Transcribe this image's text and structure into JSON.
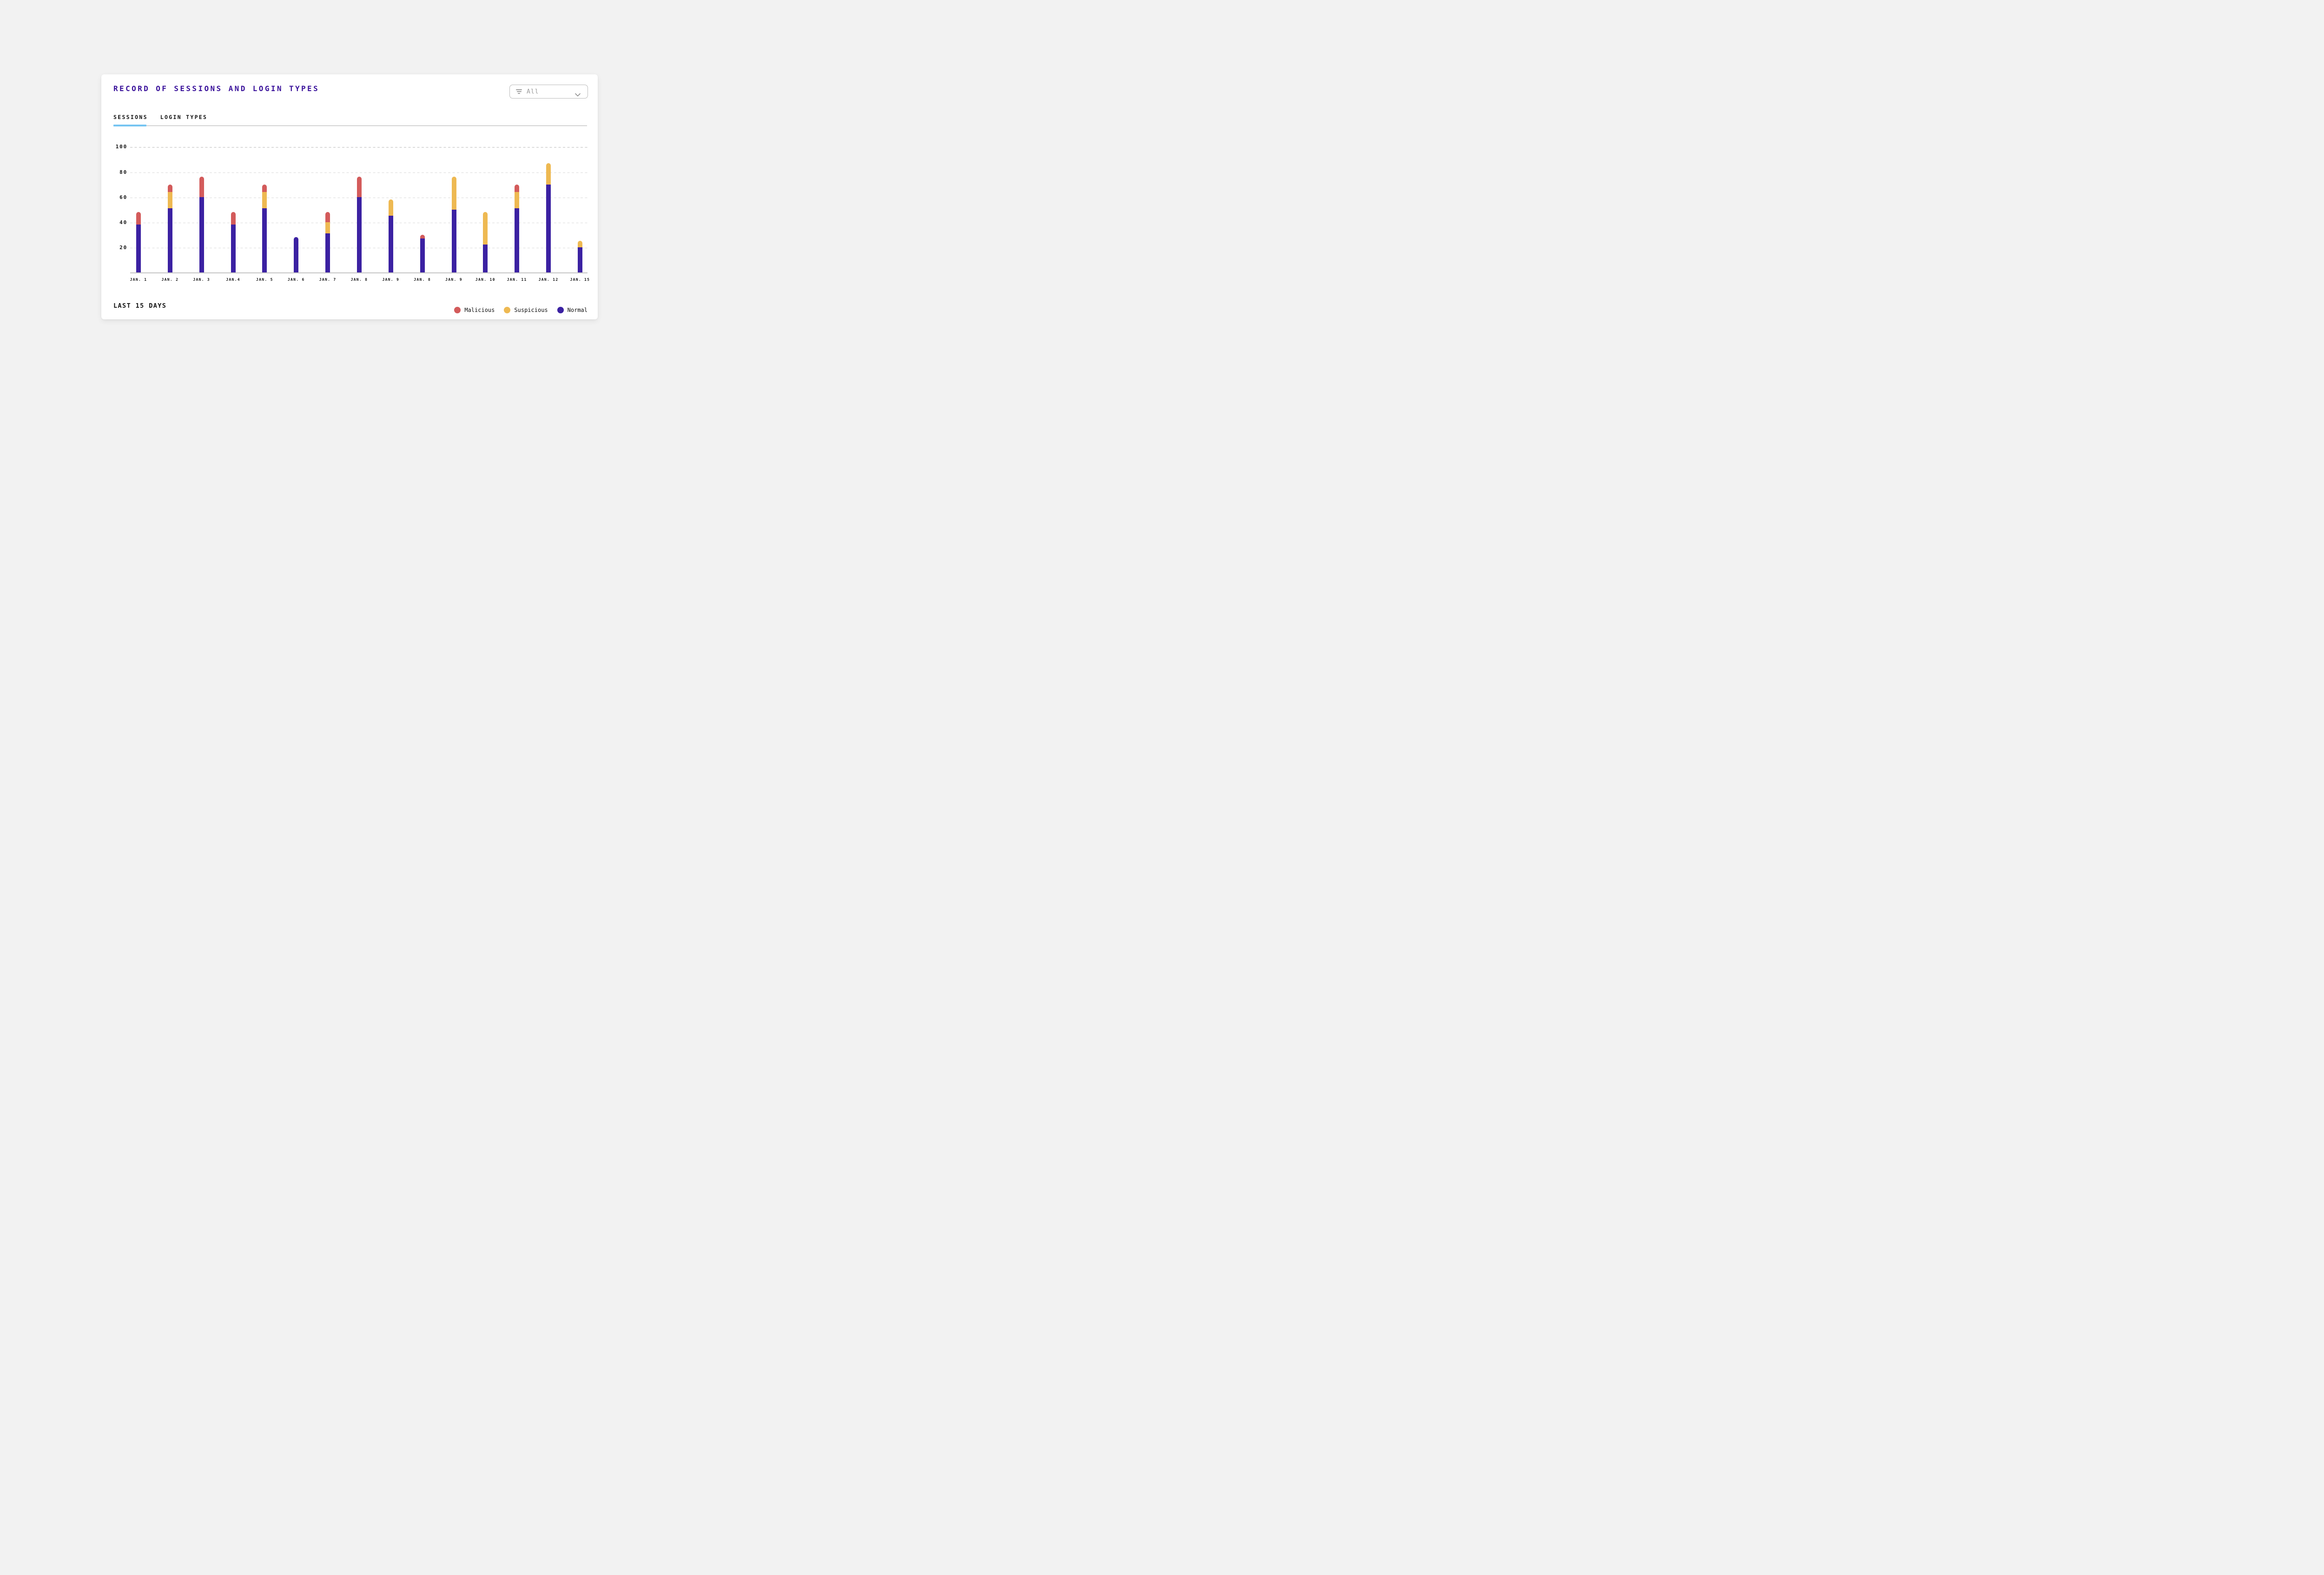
{
  "page": {
    "background": "#F2F2F2"
  },
  "card": {
    "title": "RECORD OF SESSIONS AND LOGIN TYPES",
    "title_color": "#3A129B",
    "filter_dropdown": {
      "value": "All",
      "icon": "filter-icon",
      "chevron_icon": "chevron-down-icon"
    },
    "tabs": [
      {
        "label": "SESSIONS",
        "active": true
      },
      {
        "label": "LOGIN TYPES",
        "active": false
      }
    ],
    "active_tab_underline_color": "#76C4F1",
    "footer_label": "LAST 15 DAYS"
  },
  "chart_data": {
    "type": "bar",
    "stacked": true,
    "title": "RECORD OF SESSIONS AND LOGIN TYPES",
    "categories": [
      "JAN. 1",
      "JAN. 2",
      "JAN. 3",
      "JAN.4",
      "JAN. 5",
      "JAN. 6",
      "JAN. 7",
      "JAN. 8",
      "JAN. 9",
      "JAN. 8",
      "JAN. 9",
      "JAN. 10",
      "JAN. 11",
      "JAN. 12",
      "JAN. 15"
    ],
    "series": [
      {
        "name": "Normal",
        "color": "#3B21A2",
        "values": [
          38,
          51,
          60,
          38,
          51,
          28,
          31,
          60,
          45,
          27,
          50,
          22,
          51,
          70,
          20
        ]
      },
      {
        "name": "Suspicious",
        "color": "#EEB952",
        "values": [
          0,
          13,
          0,
          0,
          13,
          0,
          9,
          0,
          13,
          0,
          26,
          26,
          13,
          17,
          5
        ]
      },
      {
        "name": "Malicious",
        "color": "#D35B5B",
        "values": [
          10,
          6,
          16,
          10,
          6,
          0,
          8,
          16,
          0,
          3,
          0,
          0,
          6,
          0,
          0
        ]
      }
    ],
    "legend": [
      {
        "label": "Malicious",
        "color": "#D35B5B"
      },
      {
        "label": "Suspicious",
        "color": "#EEB952"
      },
      {
        "label": "Normal",
        "color": "#3B21A2"
      }
    ],
    "y_ticks": [
      20,
      40,
      60,
      80,
      100
    ],
    "ylim": [
      0,
      100
    ],
    "xlabel": "",
    "ylabel": "",
    "grid": "horizontal-dashed",
    "legend_position": "bottom-right"
  }
}
